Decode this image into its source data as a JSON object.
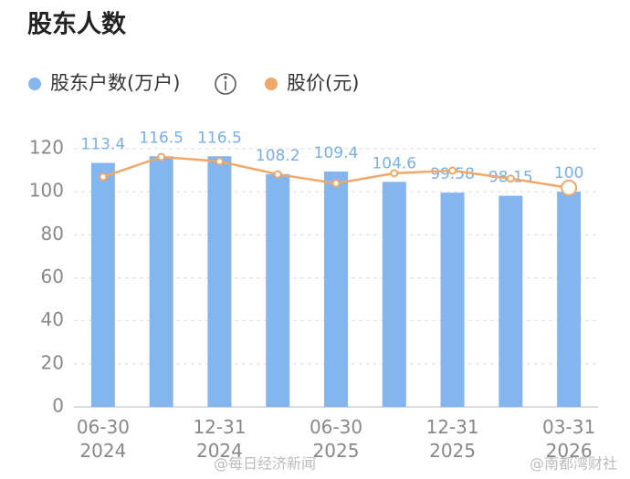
{
  "chart_data": {
    "type": "bar",
    "title": "股东人数",
    "categories": [
      "06-30\n2024",
      null,
      "12-31\n2024",
      null,
      "06-30\n2025",
      null,
      "12-31\n2025",
      null,
      "03-31\n2026"
    ],
    "series": [
      {
        "name": "股东户数(万户)",
        "type": "bar",
        "color": "#84b5ef",
        "values": [
          113.4,
          116.5,
          116.5,
          108.2,
          109.4,
          104.6,
          99.58,
          98.15,
          100
        ]
      },
      {
        "name": "股价(元)",
        "type": "line",
        "color": "#f0a868",
        "values": [
          106.9,
          116.2,
          114.1,
          108.1,
          103.9,
          108.6,
          109.8,
          106.1,
          101.8
        ]
      }
    ],
    "ylim": [
      0,
      120
    ],
    "yticks": [
      0,
      20,
      40,
      60,
      80,
      100,
      120
    ],
    "grid": true,
    "watermarks": [
      "@每日经济新闻",
      "@南都湾财社"
    ]
  }
}
